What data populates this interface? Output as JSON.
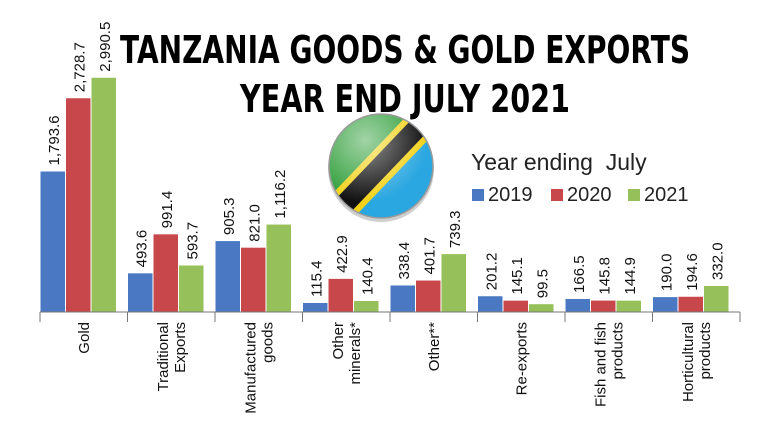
{
  "chart_data": {
    "type": "bar",
    "title_lines": [
      "TANZANIA GOODS & GOLD EXPORTS",
      "YEAR END JULY 2021"
    ],
    "legend_title": "Year ending  July",
    "categories": [
      [
        "Gold"
      ],
      [
        "Traditional",
        "Exports"
      ],
      [
        "Manufactured",
        "goods"
      ],
      [
        "Other",
        "minerals*"
      ],
      [
        "Other**"
      ],
      [
        "Re-exports"
      ],
      [
        "Fish and fish",
        "products"
      ],
      [
        "Horticultural",
        "products"
      ]
    ],
    "series": [
      {
        "name": "2019",
        "color": "#4a78c2",
        "values": [
          1793.6,
          493.6,
          905.3,
          115.4,
          338.4,
          201.2,
          166.5,
          190.0
        ],
        "labels": [
          "1,793.6",
          "493.6",
          "905.3",
          "115.4",
          "338.4",
          "201.2",
          "166.5",
          "190.0"
        ]
      },
      {
        "name": "2020",
        "color": "#c8474a",
        "values": [
          2728.7,
          991.4,
          821.0,
          422.9,
          401.7,
          145.1,
          145.8,
          194.6
        ],
        "labels": [
          "2,728.7",
          "991.4",
          "821.0",
          "422.9",
          "401.7",
          "145.1",
          "145.8",
          "194.6"
        ]
      },
      {
        "name": "2021",
        "color": "#96c059",
        "values": [
          2990.5,
          593.7,
          1116.2,
          140.4,
          739.3,
          99.5,
          144.9,
          332.0
        ],
        "labels": [
          "2,990.5",
          "593.7",
          "1,116.2",
          "140.4",
          "739.3",
          "99.5",
          "144.9",
          "332.0"
        ]
      }
    ],
    "xlabel": "",
    "ylabel": "",
    "ylim": [
      0,
      3000
    ],
    "legend_position": "right",
    "flag": "Tanzania"
  }
}
